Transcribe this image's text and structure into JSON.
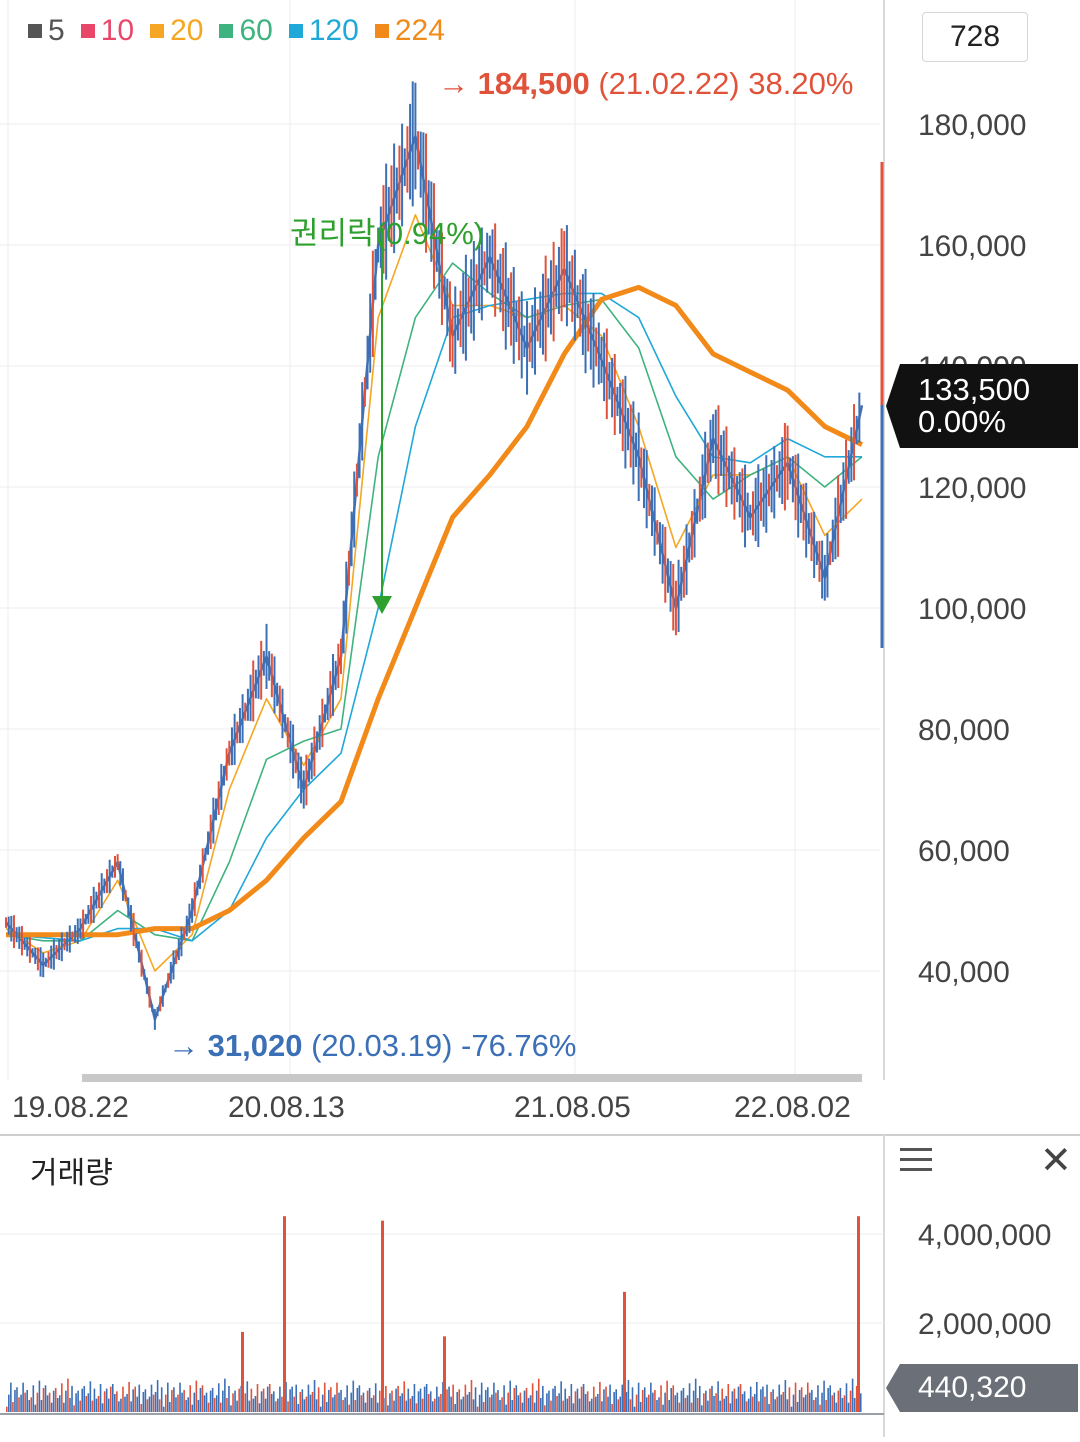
{
  "legend": [
    {
      "label": "5",
      "color": "#555555"
    },
    {
      "label": "10",
      "color": "#e8476a"
    },
    {
      "label": "20",
      "color": "#f5a623"
    },
    {
      "label": "60",
      "color": "#3fb37f"
    },
    {
      "label": "120",
      "color": "#1fa8d8"
    },
    {
      "label": "224",
      "color": "#f28a1a"
    }
  ],
  "period_count": "728",
  "annotations": {
    "high": {
      "arrow": "→",
      "price": "184,500",
      "detail": "(21.02.22) 38.20%",
      "color": "#e0523a"
    },
    "low": {
      "arrow": "→",
      "price": "31,020",
      "detail": "(20.03.19) -76.76%",
      "color": "#3b6fb6"
    },
    "event": {
      "label": "권리락(0.94%)",
      "color": "#2da02d"
    }
  },
  "price_badge": {
    "price": "133,500",
    "change": "0.00%"
  },
  "volume": {
    "title": "거래량",
    "current": "440,320"
  },
  "chart_data": [
    {
      "type": "line",
      "title": "",
      "x_ticks": [
        "19.08.22",
        "20.08.13",
        "21.08.05",
        "22.08.02"
      ],
      "y_ticks": [
        "40,000",
        "60,000",
        "80,000",
        "100,000",
        "120,000",
        "140,000",
        "160,000",
        "180,000"
      ],
      "ylim": [
        25000,
        185000
      ],
      "grid": true,
      "legend_position": "top-left",
      "series": [
        {
          "name": "5",
          "color": "#555555",
          "x": [
            "19.08.22",
            "19.10",
            "19.12",
            "20.02",
            "20.03.19",
            "20.05",
            "20.06",
            "20.08.13",
            "20.10",
            "20.11",
            "21.01",
            "21.02.22",
            "21.04",
            "21.06",
            "21.08.05",
            "21.10",
            "21.12",
            "22.01",
            "22.03",
            "22.05",
            "22.06",
            "22.08.02",
            "22.09",
            "22.10"
          ],
          "values": [
            48000,
            41000,
            47000,
            58000,
            32000,
            50000,
            76000,
            92000,
            70000,
            92000,
            160000,
            178000,
            145000,
            158000,
            143000,
            156000,
            141000,
            125000,
            100000,
            128000,
            115000,
            124000,
            105000,
            133500
          ]
        },
        {
          "name": "20",
          "color": "#f5a623",
          "x": [
            "19.08.22",
            "19.10",
            "19.12",
            "20.02",
            "20.03.19",
            "20.05",
            "20.06",
            "20.08.13",
            "20.10",
            "20.11",
            "21.01",
            "21.02.22",
            "21.04",
            "21.06",
            "21.08.05",
            "21.10",
            "21.12",
            "22.01",
            "22.03",
            "22.05",
            "22.06",
            "22.08.02",
            "22.09",
            "22.10"
          ],
          "values": [
            47000,
            43000,
            45000,
            55000,
            40000,
            46000,
            70000,
            85000,
            74000,
            85000,
            148000,
            165000,
            150000,
            150000,
            148000,
            150000,
            145000,
            130000,
            110000,
            122000,
            122000,
            125000,
            112000,
            118000
          ]
        },
        {
          "name": "60",
          "color": "#3fb37f",
          "x": [
            "19.08.22",
            "19.10",
            "19.12",
            "20.02",
            "20.03.19",
            "20.05",
            "20.06",
            "20.08.13",
            "20.10",
            "20.11",
            "21.01",
            "21.02.22",
            "21.04",
            "21.06",
            "21.08.05",
            "21.10",
            "21.12",
            "22.01",
            "22.03",
            "22.05",
            "22.06",
            "22.08.02",
            "22.09",
            "22.10"
          ],
          "values": [
            46000,
            45000,
            45000,
            50000,
            46000,
            45000,
            58000,
            75000,
            78000,
            80000,
            125000,
            148000,
            157000,
            152000,
            148000,
            150000,
            151000,
            143000,
            125000,
            118000,
            122000,
            125000,
            120000,
            125000
          ]
        },
        {
          "name": "120",
          "color": "#1fa8d8",
          "x": [
            "19.08.22",
            "19.10",
            "19.12",
            "20.02",
            "20.03.19",
            "20.05",
            "20.06",
            "20.08.13",
            "20.10",
            "20.11",
            "21.01",
            "21.02.22",
            "21.04",
            "21.06",
            "21.08.05",
            "21.10",
            "21.12",
            "22.01",
            "22.03",
            "22.05",
            "22.06",
            "22.08.02",
            "22.09",
            "22.10"
          ],
          "values": [
            46000,
            45500,
            45000,
            47000,
            47000,
            45000,
            50000,
            62000,
            70000,
            76000,
            100000,
            130000,
            148000,
            150000,
            151000,
            152000,
            152000,
            148000,
            135000,
            125000,
            124000,
            128000,
            125000,
            125000
          ]
        },
        {
          "name": "224",
          "color": "#f28a1a",
          "x": [
            "19.08.22",
            "19.10",
            "19.12",
            "20.02",
            "20.03.19",
            "20.05",
            "20.06",
            "20.08.13",
            "20.10",
            "20.11",
            "21.01",
            "21.02.22",
            "21.04",
            "21.06",
            "21.08.05",
            "21.10",
            "21.12",
            "22.01",
            "22.03",
            "22.05",
            "22.06",
            "22.08.02",
            "22.09",
            "22.10"
          ],
          "values": [
            46000,
            46000,
            46000,
            46000,
            47000,
            47000,
            50000,
            55000,
            62000,
            68000,
            85000,
            100000,
            115000,
            122000,
            130000,
            142000,
            151000,
            153000,
            150000,
            142000,
            139000,
            136000,
            130000,
            127000
          ]
        }
      ]
    },
    {
      "type": "bar",
      "title": "거래량",
      "y_ticks": [
        "2,000,000",
        "4,000,000"
      ],
      "ylim": [
        0,
        4400000
      ],
      "x": [
        "19.08.22",
        "20.08.13",
        "21.08.05",
        "22.08.02"
      ],
      "spikes": [
        {
          "x": "20.06",
          "value": 1800000
        },
        {
          "x": "20.08.13",
          "value": 4400000
        },
        {
          "x": "20.11",
          "value": 4300000
        },
        {
          "x": "21.02.22",
          "value": 1700000
        },
        {
          "x": "21.12",
          "value": 2700000
        },
        {
          "x": "22.10",
          "value": 4400000
        }
      ],
      "current": 440320
    }
  ]
}
